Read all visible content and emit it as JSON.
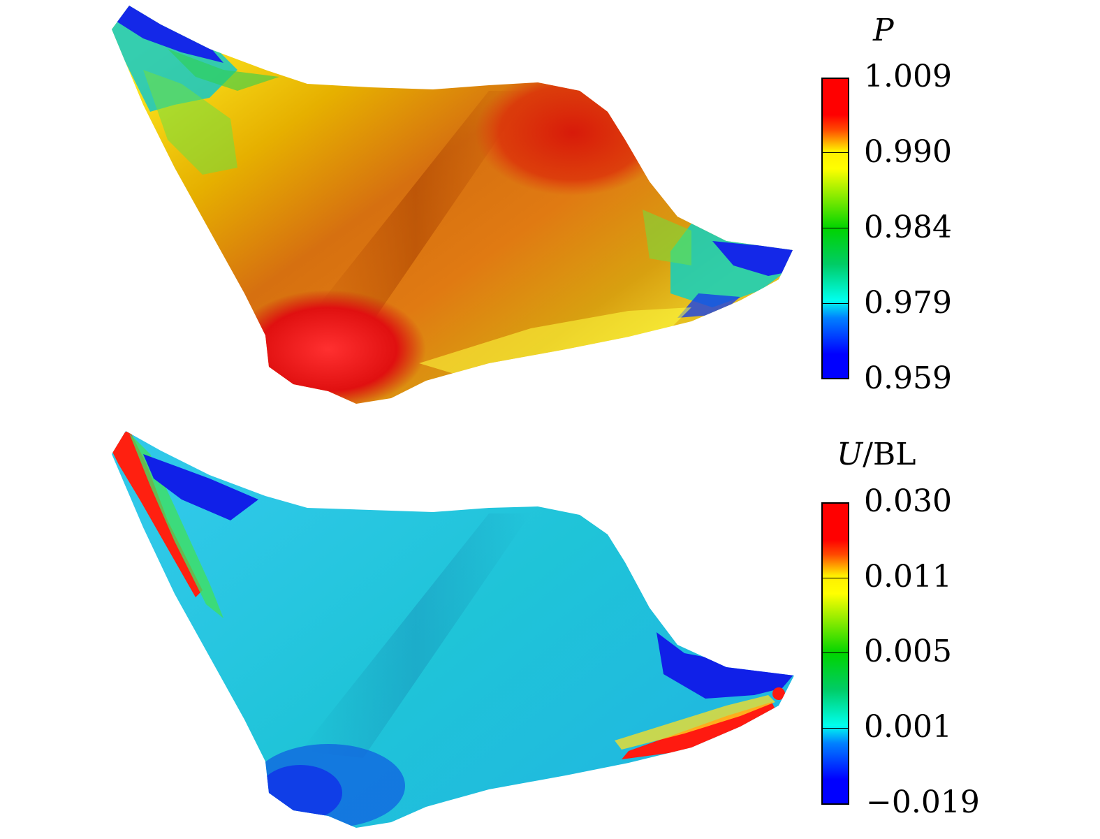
{
  "panels": [
    {
      "id": "pressure",
      "title_symbol": "P",
      "title_suffix": "",
      "colorbar_labels": [
        "1.009",
        "0.990",
        "0.984",
        "0.979",
        "0.959"
      ],
      "colorbar_colors": [
        "#ff0000",
        "#ff4a00",
        "#ffee00",
        "#ffff00",
        "#00d400",
        "#00cc66",
        "#00ffee",
        "#0080ff",
        "#0000ff"
      ]
    },
    {
      "id": "velocity",
      "title_symbol": "U",
      "title_suffix": "/BL",
      "colorbar_labels": [
        "0.030",
        "0.011",
        "0.005",
        "0.001",
        "−0.019"
      ],
      "colorbar_colors": [
        "#ff0000",
        "#ff4a00",
        "#ffee00",
        "#ffff00",
        "#00d400",
        "#00cc66",
        "#00ffee",
        "#0080ff",
        "#0000ff"
      ]
    }
  ]
}
